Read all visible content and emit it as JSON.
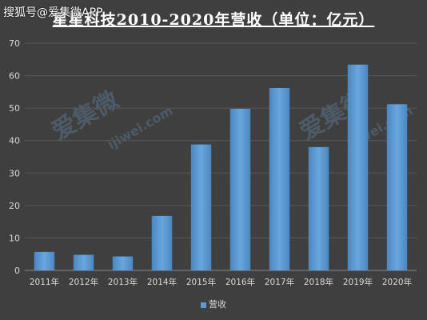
{
  "watermark_top": "搜狐号@爱集微APP",
  "watermark_text_1": "爱集微",
  "watermark_text_2": "ijiwei.com",
  "chart_data": {
    "type": "bar",
    "title": "星星科技2010-2020年营收（单位：亿元）",
    "categories": [
      "2011年",
      "2012年",
      "2013年",
      "2014年",
      "2015年",
      "2016年",
      "2017年",
      "2018年",
      "2019年",
      "2020年"
    ],
    "series": [
      {
        "name": "营收",
        "values": [
          5.7,
          4.8,
          4.3,
          16.8,
          38.8,
          49.8,
          56.2,
          38.0,
          63.4,
          51.2
        ]
      }
    ],
    "y_ticks": [
      0,
      10,
      20,
      30,
      40,
      50,
      60,
      70
    ],
    "ylim": [
      0,
      70
    ],
    "legend_position": "bottom",
    "bar_color": "#5b9bd5",
    "grid": true
  }
}
